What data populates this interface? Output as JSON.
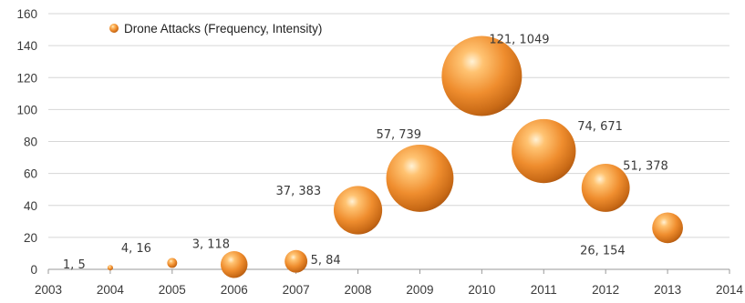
{
  "chart_data": {
    "type": "bubble",
    "title": "",
    "xlabel": "",
    "ylabel": "",
    "xlim": [
      2003,
      2014
    ],
    "ylim": [
      0,
      160
    ],
    "x_ticks": [
      2003,
      2004,
      2005,
      2006,
      2007,
      2008,
      2009,
      2010,
      2011,
      2012,
      2013,
      2014
    ],
    "y_ticks": [
      0,
      20,
      40,
      60,
      80,
      100,
      120,
      140,
      160
    ],
    "grid": "horizontal",
    "legend_position": "top-left",
    "bubble_color": "#e88a2c",
    "series": [
      {
        "name": "Drone Attacks (Frequency, Intensity)",
        "points": [
          {
            "x": 2004,
            "y": 1,
            "size": 5,
            "label": "1, 5"
          },
          {
            "x": 2005,
            "y": 4,
            "size": 16,
            "label": "4, 16"
          },
          {
            "x": 2006,
            "y": 3,
            "size": 118,
            "label": "3, 118"
          },
          {
            "x": 2007,
            "y": 5,
            "size": 84,
            "label": "5, 84"
          },
          {
            "x": 2008,
            "y": 37,
            "size": 383,
            "label": "37, 383"
          },
          {
            "x": 2009,
            "y": 57,
            "size": 739,
            "label": "57, 739"
          },
          {
            "x": 2010,
            "y": 121,
            "size": 1049,
            "label": "121, 1049"
          },
          {
            "x": 2011,
            "y": 74,
            "size": 671,
            "label": "74, 671"
          },
          {
            "x": 2012,
            "y": 51,
            "size": 378,
            "label": "51, 378"
          },
          {
            "x": 2013,
            "y": 26,
            "size": 154,
            "label": "26, 154"
          }
        ]
      }
    ]
  }
}
